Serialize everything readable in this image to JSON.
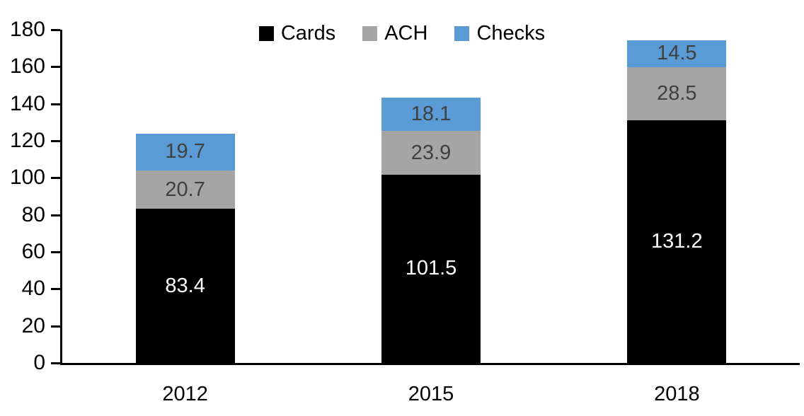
{
  "chart_data": {
    "type": "bar",
    "stacked": true,
    "title": "",
    "xlabel": "",
    "ylabel": "",
    "categories": [
      "2012",
      "2015",
      "2018"
    ],
    "series": [
      {
        "name": "Cards",
        "color": "#000000",
        "label_color": "#ffffff",
        "values": [
          83.4,
          101.5,
          131.2
        ]
      },
      {
        "name": "ACH",
        "color": "#a5a5a5",
        "label_color": "#404040",
        "values": [
          20.7,
          23.9,
          28.5
        ]
      },
      {
        "name": "Checks",
        "color": "#5b9bd5",
        "label_color": "#404040",
        "values": [
          19.7,
          18.1,
          14.5
        ]
      }
    ],
    "totals": [
      123.8,
      143.5,
      174.2
    ],
    "ylim": [
      0,
      180
    ],
    "ytick_step": 20,
    "yticks": [
      0,
      20,
      40,
      60,
      80,
      100,
      120,
      140,
      160,
      180
    ],
    "grid": false,
    "legend_position": "top-center",
    "axis_color": "#000000",
    "background_color": "#ffffff"
  }
}
